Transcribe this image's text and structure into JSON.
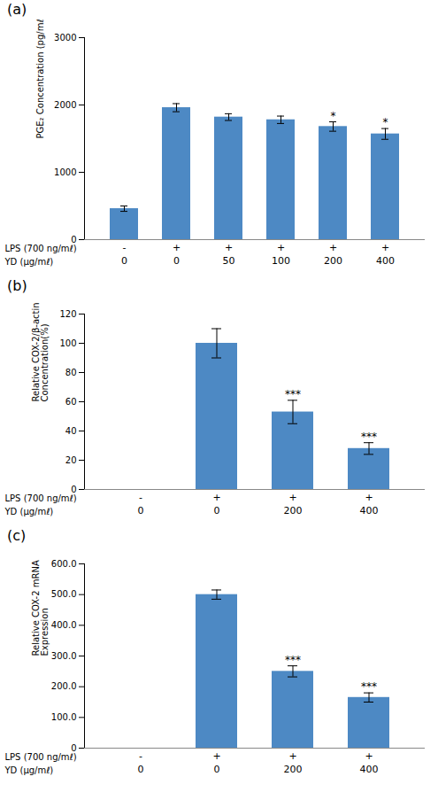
{
  "chart_data": [
    {
      "type": "bar",
      "title": "(a)",
      "ylabel": "PGE₂ Concentration (pg/mℓ)",
      "category_rows": [
        {
          "label": "LPS (700 ng/mℓ)",
          "categories": [
            "-",
            "+",
            "+",
            "+",
            "+",
            "+"
          ]
        },
        {
          "label": "YD (μg/mℓ)",
          "categories": [
            "0",
            "0",
            "50",
            "100",
            "200",
            "400"
          ]
        }
      ],
      "values": [
        460,
        1960,
        1820,
        1780,
        1680,
        1570
      ],
      "errors": [
        40,
        60,
        50,
        55,
        70,
        80
      ],
      "significance": [
        null,
        null,
        null,
        null,
        "*",
        "*"
      ],
      "color": "#4d89c4",
      "ylim": [
        0,
        3000
      ],
      "yticks": [
        0,
        1000,
        2000,
        3000
      ],
      "grid": false
    },
    {
      "type": "bar",
      "title": "(b)",
      "ylabel": "Relative COX-2/β-actin\nConcentration(%)",
      "category_rows": [
        {
          "label": "LPS (700 ng/mℓ)",
          "categories": [
            "-",
            "+",
            "+",
            "+"
          ]
        },
        {
          "label": "YD (μg/mℓ)",
          "categories": [
            "0",
            "0",
            "200",
            "400"
          ]
        }
      ],
      "values": [
        0,
        100,
        53,
        28
      ],
      "errors": [
        0,
        10,
        8,
        4
      ],
      "significance": [
        null,
        null,
        "***",
        "***"
      ],
      "color": "#4d89c4",
      "ylim": [
        0,
        120
      ],
      "yticks": [
        0,
        20,
        40,
        60,
        80,
        100,
        120
      ],
      "grid": false
    },
    {
      "type": "bar",
      "title": "(c)",
      "ylabel": "Relative COX-2 mRNA\nExpression",
      "category_rows": [
        {
          "label": "LPS (700 ng/mℓ)",
          "categories": [
            "-",
            "+",
            "+",
            "+"
          ]
        },
        {
          "label": "YD (μg/mℓ)",
          "categories": [
            "0",
            "0",
            "200",
            "400"
          ]
        }
      ],
      "values": [
        0,
        500,
        250,
        165
      ],
      "errors": [
        0,
        15,
        18,
        15
      ],
      "significance": [
        null,
        null,
        "***",
        "***"
      ],
      "color": "#4d89c4",
      "ylim": [
        0,
        600
      ],
      "yticks": [
        0,
        {
          "value": 100,
          "label": "100.0"
        },
        {
          "value": 200,
          "label": "200.0"
        },
        {
          "value": 300,
          "label": "300.0"
        },
        {
          "value": 400,
          "label": "400.0"
        },
        {
          "value": 500,
          "label": "500.0"
        },
        {
          "value": 600,
          "label": "600.0"
        }
      ],
      "grid": false
    }
  ]
}
